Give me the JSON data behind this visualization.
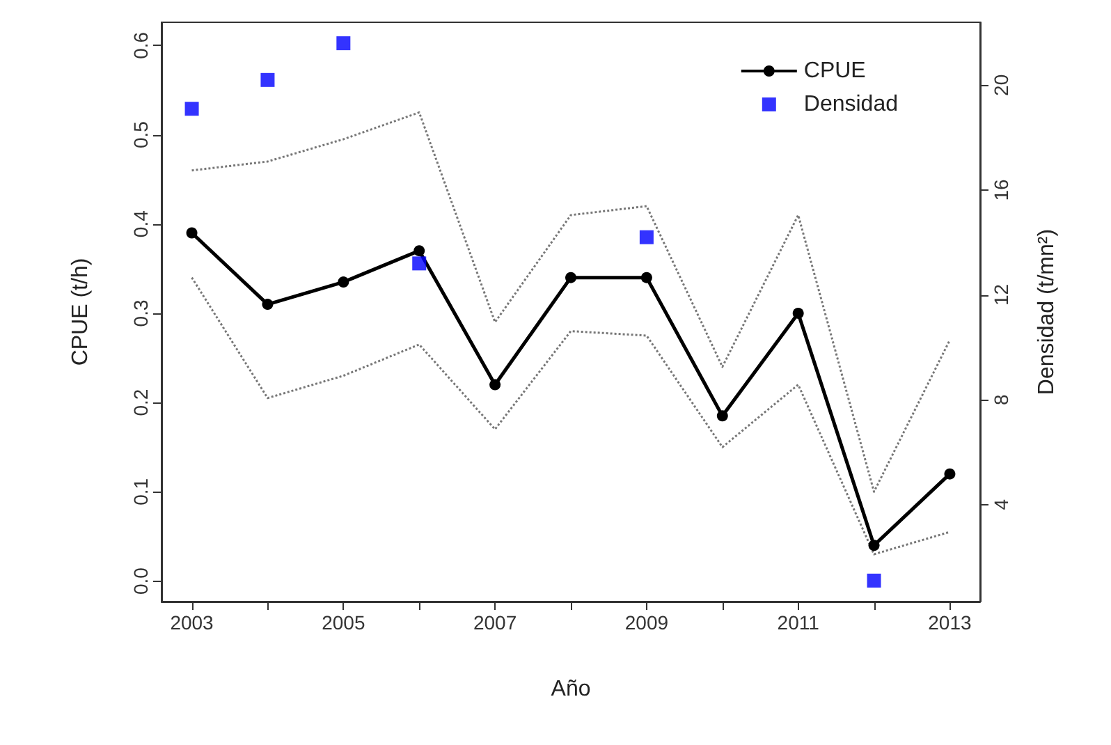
{
  "chart_data": {
    "type": "line",
    "xlabel": "Año",
    "ylabel": "CPUE (t/h)",
    "y2label": "Densidad (t/mn²)",
    "x": [
      2003,
      2004,
      2005,
      2006,
      2007,
      2008,
      2009,
      2010,
      2011,
      2012,
      2013
    ],
    "xlim": [
      2002.6,
      2013.4
    ],
    "xticks": [
      2003,
      {
        "value": 2004,
        "label": null
      },
      2005,
      {
        "value": 2006,
        "label": null
      },
      2007,
      {
        "value": 2008,
        "label": null
      },
      2009,
      {
        "value": 2010,
        "label": null
      },
      2011,
      {
        "value": 2012,
        "label": null
      },
      2013
    ],
    "ylim": [
      -0.023,
      0.626
    ],
    "yticks": [
      {
        "value": 0,
        "label": "0.0"
      },
      0.1,
      0.2,
      0.3,
      0.4,
      0.5,
      0.6
    ],
    "y2lim": [
      0.3,
      22.4
    ],
    "y2ticks": [
      4,
      8,
      12,
      16,
      20
    ],
    "series": [
      {
        "name": "CPUE",
        "color": "#000000",
        "marker": "circle",
        "line_style": "solid",
        "values": [
          0.39,
          0.31,
          0.335,
          0.37,
          0.22,
          0.34,
          0.34,
          0.185,
          0.3,
          0.04,
          0.12
        ]
      },
      {
        "color": "#777777",
        "marker": "none",
        "line_style": "dotted",
        "values": [
          0.34,
          0.205,
          0.23,
          0.265,
          0.17,
          0.28,
          0.275,
          0.15,
          0.22,
          0.03,
          0.055
        ]
      },
      {
        "color": "#777777",
        "marker": "none",
        "line_style": "dotted",
        "values": [
          0.46,
          0.47,
          0.495,
          0.525,
          0.29,
          0.41,
          0.42,
          0.24,
          0.41,
          0.1,
          0.27
        ]
      },
      {
        "name": "Densidad",
        "type": "scatter",
        "axis": "y2",
        "color": "#0000ff",
        "marker": "square",
        "x": [
          2003,
          2004,
          2005,
          2006,
          2009,
          2012
        ],
        "values": [
          19.1,
          20.2,
          21.6,
          13.2,
          14.2,
          1.1
        ]
      }
    ],
    "legend": "top right"
  }
}
